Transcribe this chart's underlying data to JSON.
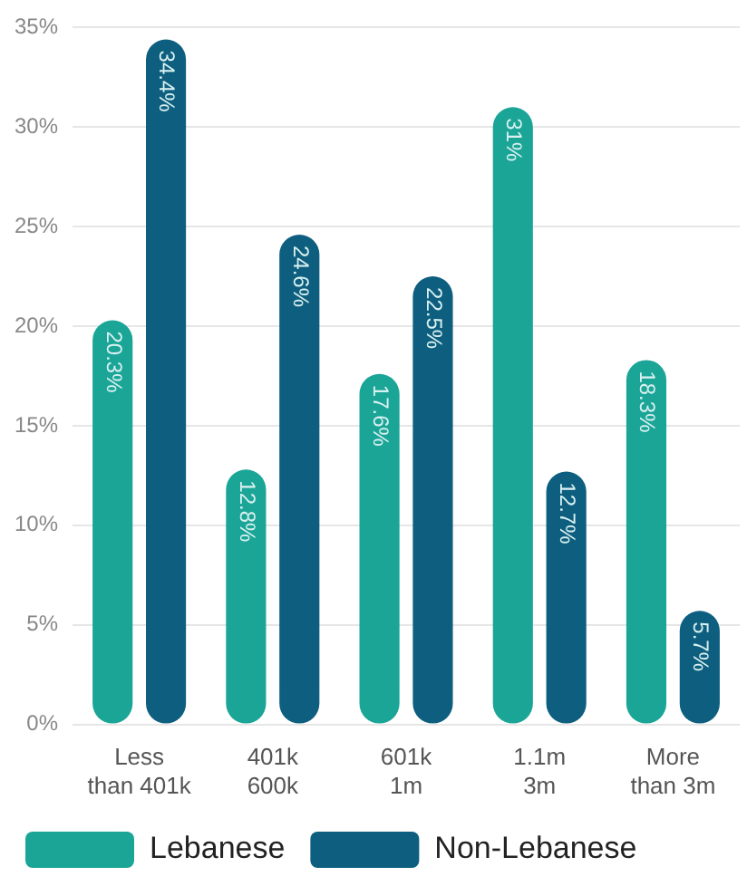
{
  "chart_data": {
    "type": "bar",
    "categories": [
      "Less\nthan 401k",
      "401k\n600k",
      "601k\n1m",
      "1.1m\n3m",
      "More\nthan 3m"
    ],
    "series": [
      {
        "name": "Lebanese",
        "color": "#1aa597",
        "values": [
          20.3,
          12.8,
          17.6,
          31,
          18.3
        ],
        "value_labels": [
          "20.3%",
          "12.8%",
          "17.6%",
          "31%",
          "18.3%"
        ]
      },
      {
        "name": "Non-Lebanese",
        "color": "#0e5f7f",
        "values": [
          34.4,
          24.6,
          22.5,
          12.7,
          5.7
        ],
        "value_labels": [
          "34.4%",
          "24.6%",
          "22.5%",
          "12.7%",
          "5.7%"
        ]
      }
    ],
    "ylim": [
      0,
      35
    ],
    "yticks": [
      {
        "value": 0,
        "label": "0%"
      },
      {
        "value": 5,
        "label": "5%"
      },
      {
        "value": 10,
        "label": "10%"
      },
      {
        "value": 15,
        "label": "15%"
      },
      {
        "value": 20,
        "label": "20%"
      },
      {
        "value": 25,
        "label": "25%"
      },
      {
        "value": 30,
        "label": "30%"
      },
      {
        "value": 35,
        "label": "35%"
      }
    ],
    "grid": "y",
    "legend": "bottom"
  }
}
